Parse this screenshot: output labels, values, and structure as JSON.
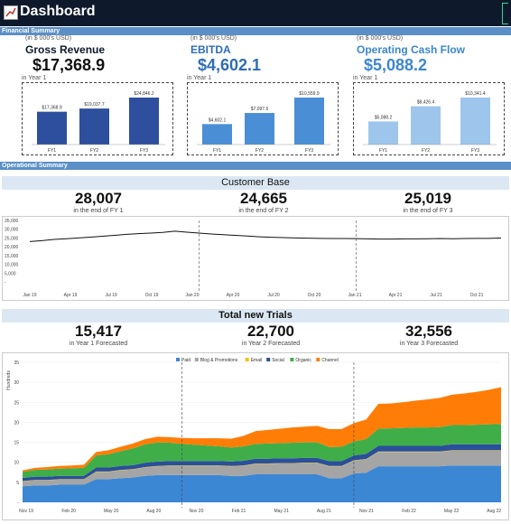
{
  "header": {
    "title": "Dashboard"
  },
  "financial": {
    "section_label": "Financial Summary",
    "cards": [
      {
        "units": "(in $ 000's USD)",
        "name": "Gross Revenue",
        "value": "$17,368.9",
        "sub": "in Year 1",
        "name_color": "#0e1a2b",
        "value_color": "#111111",
        "bar_color": "#2e4f9e",
        "categories": [
          "FY1",
          "FY2",
          "FY3"
        ],
        "values": [
          17368.9,
          19037.7,
          24846.2
        ],
        "labels": [
          "$17,368.9",
          "$19,037.7",
          "$24,846.2"
        ]
      },
      {
        "units": "(in $ 000's USD)",
        "name": "EBITDA",
        "value": "$4,602.1",
        "sub": "in Year 1",
        "name_color": "#2f6db5",
        "value_color": "#2f6db5",
        "bar_color": "#4a8fd6",
        "categories": [
          "FY1",
          "FY2",
          "FY3"
        ],
        "values": [
          4602.1,
          7097.6,
          10559.9
        ],
        "labels": [
          "$4,602.1",
          "$7,097.6",
          "$10,559.9"
        ]
      },
      {
        "units": "(in $ 000's USD)",
        "name": "Operating Cash Flow",
        "value": "$5,088.2",
        "sub": "in Year 1",
        "name_color": "#3d86cf",
        "value_color": "#3d86cf",
        "bar_color": "#9ec6ec",
        "categories": [
          "FY1",
          "FY2",
          "FY3"
        ],
        "values": [
          5088.2,
          8426.4,
          10341.4
        ],
        "labels": [
          "$5,088.2",
          "$8,426.4",
          "$10,341.4"
        ]
      }
    ]
  },
  "operational": {
    "section_label": "Operational Summary",
    "customer_base": {
      "title": "Customer Base",
      "stats": [
        {
          "value": "28,007",
          "label": "in the end of FY 1"
        },
        {
          "value": "24,665",
          "label": "in the end of FY 2"
        },
        {
          "value": "25,019",
          "label": "in the end of FY 3"
        }
      ]
    },
    "trials": {
      "title": "Total new Trials",
      "stats": [
        {
          "value": "15,417",
          "label": "in Year 1 Forecasted"
        },
        {
          "value": "22,700",
          "label": "in Year 2 Forecasted"
        },
        {
          "value": "32,556",
          "label": "in Year 3 Forecasted"
        }
      ]
    }
  },
  "chart_data": [
    {
      "type": "line",
      "title": "",
      "ylim": [
        0,
        35000
      ],
      "yticks": [
        "-",
        "5,000",
        "10,000",
        "15,000",
        "20,000",
        "25,000",
        "30,000",
        "35,000"
      ],
      "xticks": [
        "Jan 19",
        "Apr 19",
        "Jul 19",
        "Oct 19",
        "Jan 20",
        "Apr 20",
        "Jul 20",
        "Oct 20",
        "Jan 21",
        "Apr 21",
        "Jul 21",
        "Oct 21"
      ],
      "series": [
        {
          "color": "#111111",
          "values": [
            23000,
            23500,
            24200,
            24600,
            25000,
            25500,
            26000,
            26500,
            27100,
            27500,
            27800,
            28200,
            28900,
            28300,
            27800,
            27300,
            26900,
            26500,
            26100,
            25700,
            25400,
            25200,
            25000,
            24900,
            24800,
            24700,
            24700,
            24665,
            24500,
            24400,
            24400,
            24500,
            24500,
            24600,
            24700,
            24600,
            24700,
            24800,
            24800,
            25000
          ]
        }
      ],
      "dividers": [
        14,
        27
      ]
    },
    {
      "type": "area",
      "title": "",
      "ylabel": "Hundreds",
      "ylim": [
        0,
        35
      ],
      "yticks": [
        "-",
        "5",
        "10",
        "15",
        "20",
        "25",
        "30",
        "35"
      ],
      "xticks": [
        "Nov 19",
        "Feb 20",
        "May 20",
        "Aug 20",
        "Nov 20",
        "Feb 21",
        "May 21",
        "Aug 21",
        "Nov 21",
        "Feb 22",
        "May 22",
        "Aug 22"
      ],
      "legend_position": "top",
      "series": [
        {
          "name": "Paid",
          "color": "#3b87d4",
          "values": [
            4,
            4.2,
            4.2,
            4.4,
            4.4,
            4.4,
            5.8,
            5.8,
            6,
            6.2,
            6.6,
            6.8,
            6.8,
            6.8,
            6.8,
            6.8,
            6.8,
            6.6,
            6.6,
            7,
            7,
            7,
            7,
            7,
            7,
            6,
            6,
            7.2,
            7.4,
            9,
            9,
            9,
            9,
            9,
            9,
            9.2,
            9.2,
            9.2,
            9.2,
            9.2
          ]
        },
        {
          "name": "Blog & Promotions",
          "color": "#a5a5a5",
          "values": [
            1.2,
            1.3,
            1.3,
            1.3,
            1.3,
            1.3,
            1.8,
            1.8,
            2,
            2,
            2.1,
            2.2,
            2.3,
            2.3,
            2.3,
            2.3,
            2.3,
            2.4,
            2.5,
            2.6,
            2.6,
            2.7,
            2.7,
            2.8,
            2.8,
            3,
            3,
            3.2,
            3.3,
            3.6,
            3.6,
            3.6,
            3.6,
            3.6,
            3.6,
            3.7,
            3.7,
            3.7,
            3.7,
            3.7
          ]
        },
        {
          "name": "Email",
          "color": "#f2c200",
          "values": [
            0.1,
            0.1,
            0.1,
            0.1,
            0.1,
            0.1,
            0.1,
            0.1,
            0.1,
            0.1,
            0.1,
            0.1,
            0.1,
            0.1,
            0.1,
            0.1,
            0.1,
            0.1,
            0.1,
            0.1,
            0.1,
            0.1,
            0.1,
            0.1,
            0.1,
            0.1,
            0.1,
            0.1,
            0.1,
            0.1,
            0.1,
            0.1,
            0.1,
            0.1,
            0.1,
            0.1,
            0.1,
            0.1,
            0.1,
            0.1
          ]
        },
        {
          "name": "Social",
          "color": "#2a4f9c",
          "values": [
            0.8,
            0.8,
            0.8,
            0.8,
            0.8,
            0.8,
            1,
            1,
            1,
            1,
            1.1,
            1.1,
            1.1,
            1.1,
            1.1,
            1.1,
            1.1,
            1.1,
            1.2,
            1.2,
            1.2,
            1.2,
            1.2,
            1.2,
            1.2,
            1.2,
            1.2,
            1.2,
            1.3,
            1.4,
            1.4,
            1.4,
            1.4,
            1.4,
            1.4,
            1.5,
            1.5,
            1.5,
            1.5,
            1.5
          ]
        },
        {
          "name": "Organic",
          "color": "#3fae49",
          "values": [
            1.5,
            1.7,
            1.8,
            1.8,
            1.9,
            2,
            3,
            3.3,
            3.7,
            4.2,
            4.6,
            4.8,
            4.6,
            4.3,
            4.1,
            3.9,
            3.7,
            3.5,
            3.6,
            3.7,
            3.8,
            3.8,
            3.9,
            3.9,
            3.9,
            3.5,
            3.6,
            3.5,
            3.7,
            4.3,
            4.4,
            4.5,
            4.6,
            4.6,
            4.7,
            4.8,
            4.8,
            4.9,
            5,
            5.1
          ]
        },
        {
          "name": "Channel",
          "color": "#ff7d07",
          "values": [
            0.4,
            0.5,
            0.6,
            0.7,
            0.7,
            0.8,
            0.9,
            1,
            1.1,
            1.2,
            1.3,
            1.4,
            1.4,
            1.5,
            1.6,
            1.8,
            2,
            2.2,
            2.6,
            3.2,
            3.4,
            3.6,
            3.8,
            3.9,
            4.1,
            4.5,
            4.4,
            4.6,
            4.9,
            6.2,
            6.2,
            6.4,
            6.7,
            7,
            7.3,
            7.6,
            7.9,
            8.2,
            8.6,
            9.2
          ]
        }
      ],
      "dividers": [
        13,
        27
      ]
    }
  ]
}
